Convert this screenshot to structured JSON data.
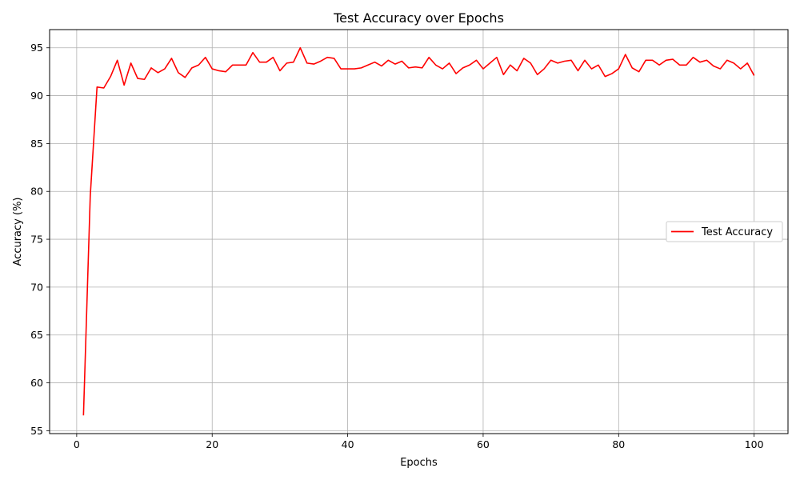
{
  "chart_data": {
    "type": "line",
    "title": "Test Accuracy over Epochs",
    "xlabel": "Epochs",
    "ylabel": "Accuracy (%)",
    "xlim": [
      -4,
      105
    ],
    "ylim": [
      54.7,
      96.9
    ],
    "x_ticks": [
      0,
      20,
      40,
      60,
      80,
      100
    ],
    "y_ticks": [
      55,
      60,
      65,
      70,
      75,
      80,
      85,
      90,
      95
    ],
    "grid": true,
    "legend_position": "center-right",
    "series": [
      {
        "name": "Test Accuracy",
        "color": "#ff0000",
        "x": [
          1,
          2,
          3,
          4,
          5,
          6,
          7,
          8,
          9,
          10,
          11,
          12,
          13,
          14,
          15,
          16,
          17,
          18,
          19,
          20,
          21,
          22,
          23,
          24,
          25,
          26,
          27,
          28,
          29,
          30,
          31,
          32,
          33,
          34,
          35,
          36,
          37,
          38,
          39,
          40,
          41,
          42,
          43,
          44,
          45,
          46,
          47,
          48,
          49,
          50,
          51,
          52,
          53,
          54,
          55,
          56,
          57,
          58,
          59,
          60,
          61,
          62,
          63,
          64,
          65,
          66,
          67,
          68,
          69,
          70,
          71,
          72,
          73,
          74,
          75,
          76,
          77,
          78,
          79,
          80,
          81,
          82,
          83,
          84,
          85,
          86,
          87,
          88,
          89,
          90,
          91,
          92,
          93,
          94,
          95,
          96,
          97,
          98,
          99,
          100
        ],
        "values": [
          56.6,
          79.5,
          90.9,
          90.8,
          92.0,
          93.7,
          91.1,
          93.4,
          91.8,
          91.7,
          92.9,
          92.4,
          92.8,
          93.9,
          92.4,
          91.9,
          92.9,
          93.2,
          94.0,
          92.8,
          92.6,
          92.5,
          93.2,
          93.2,
          93.2,
          94.5,
          93.5,
          93.5,
          94.0,
          92.6,
          93.4,
          93.5,
          95.0,
          93.4,
          93.3,
          93.6,
          94.0,
          93.9,
          92.8,
          92.8,
          92.8,
          92.9,
          93.2,
          93.5,
          93.1,
          93.7,
          93.3,
          93.6,
          92.9,
          93.0,
          92.9,
          94.0,
          93.2,
          92.8,
          93.4,
          92.3,
          92.9,
          93.2,
          93.7,
          92.8,
          93.4,
          94.0,
          92.2,
          93.2,
          92.6,
          93.9,
          93.4,
          92.2,
          92.8,
          93.7,
          93.4,
          93.6,
          93.7,
          92.6,
          93.7,
          92.8,
          93.2,
          92.0,
          92.3,
          92.8,
          94.3,
          92.9,
          92.5,
          93.7,
          93.7,
          93.2,
          93.7,
          93.8,
          93.2,
          93.2,
          94.0,
          93.5,
          93.7,
          93.1,
          92.8,
          93.7,
          93.4,
          92.8,
          93.4,
          92.1
        ]
      }
    ]
  }
}
